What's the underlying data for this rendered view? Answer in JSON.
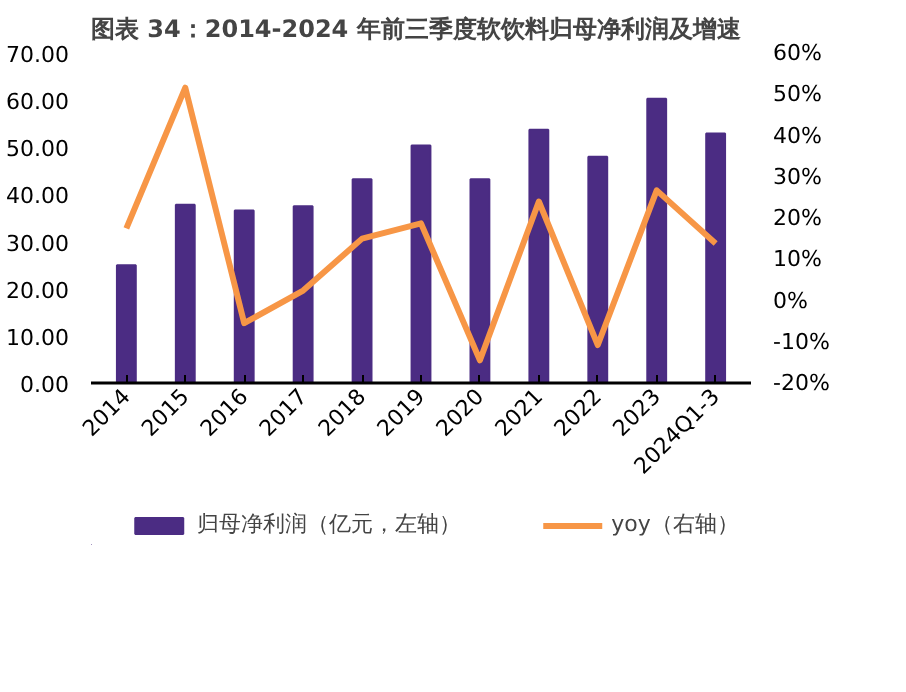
{
  "chart_data": {
    "type": "bar",
    "title": "图表 34：2014-2024 年前三季度软饮料归母净利润及增速",
    "categories": [
      "2014",
      "2015",
      "2016",
      "2017",
      "2018",
      "2019",
      "2020",
      "2021",
      "2022",
      "2023",
      "2024Q1-3"
    ],
    "series": [
      {
        "name": "归母净利润（亿元，左轴）",
        "color": "#4b2c83",
        "values": [
          25.0,
          37.8,
          36.6,
          37.5,
          43.2,
          50.4,
          43.2,
          53.7,
          48.0,
          60.3,
          52.9
        ]
      },
      {
        "name": "yoy（右轴）",
        "type": "line",
        "axis": "y2",
        "color": "#f79646",
        "values": [
          17.5,
          51.6,
          -5.5,
          2.4,
          15.0,
          18.7,
          -14.5,
          24.0,
          -10.8,
          26.7,
          13.8
        ]
      }
    ],
    "ylim": [
      0,
      70
    ],
    "yticks": [
      {
        "value": 0,
        "label": "0.00"
      },
      {
        "value": 10,
        "label": "10.00"
      },
      {
        "value": 20,
        "label": "20.00"
      },
      {
        "value": 30,
        "label": "30.00"
      },
      {
        "value": 40,
        "label": "40.00"
      },
      {
        "value": 50,
        "label": "50.00"
      },
      {
        "value": 60,
        "label": "60.00"
      },
      {
        "value": 70,
        "label": "70.00"
      }
    ],
    "y2lim": [
      -20,
      60
    ],
    "y2ticks": [
      {
        "value": -20,
        "label": "-20%"
      },
      {
        "value": -10,
        "label": "-10%"
      },
      {
        "value": 0,
        "label": "0%"
      },
      {
        "value": 10,
        "label": "10%"
      },
      {
        "value": 20,
        "label": "20%"
      },
      {
        "value": 30,
        "label": "30%"
      },
      {
        "value": 40,
        "label": "40%"
      },
      {
        "value": 50,
        "label": "50%"
      },
      {
        "value": 60,
        "label": "60%"
      }
    ],
    "grid": false,
    "legend": "bottom",
    "line_style": "solid",
    "marker": "none"
  }
}
